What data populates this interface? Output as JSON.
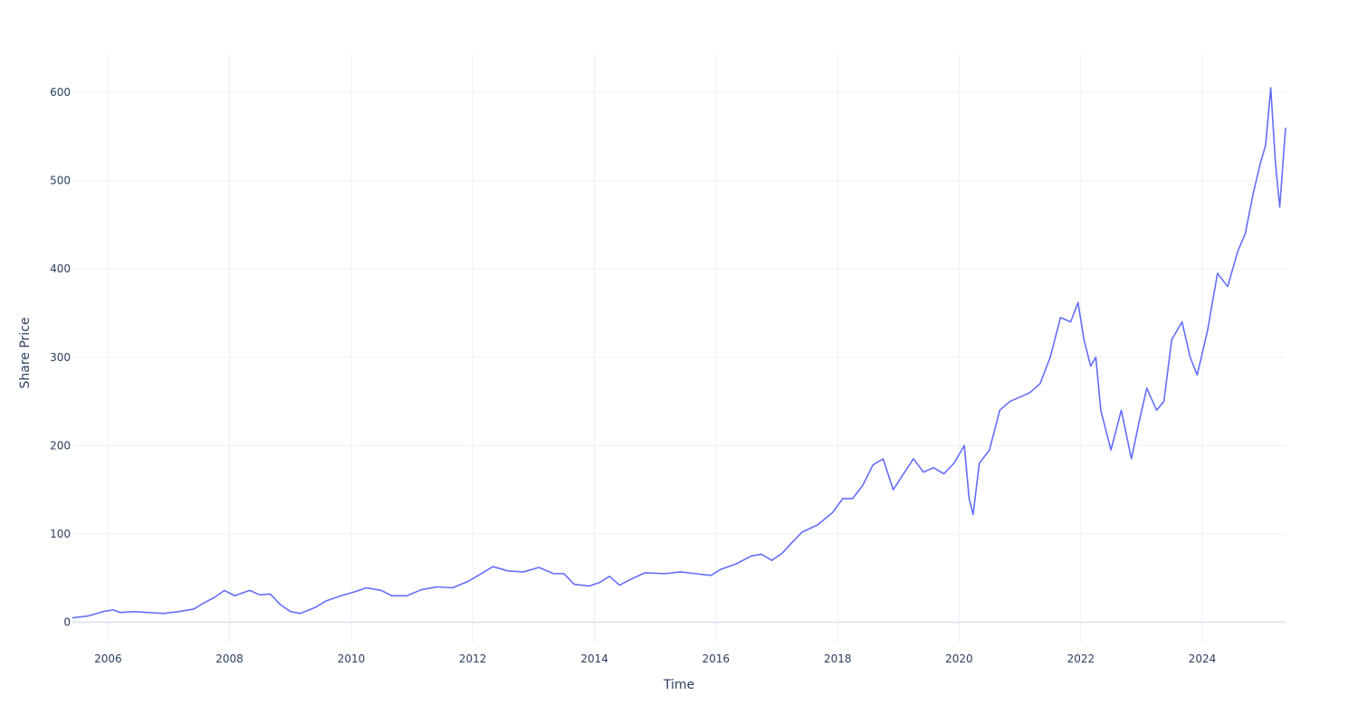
{
  "chart_data": {
    "type": "line",
    "title": "",
    "xlabel": "Time",
    "ylabel": "Share Price",
    "xlim": [
      "2005-06-01",
      "2025-05-15"
    ],
    "ylim": [
      -23,
      643
    ],
    "x_ticks": [
      "2006",
      "2008",
      "2010",
      "2012",
      "2014",
      "2016",
      "2018",
      "2020",
      "2022",
      "2024"
    ],
    "y_ticks": [
      0,
      100,
      200,
      300,
      400,
      500,
      600
    ],
    "grid": true,
    "legend": "none",
    "series": [
      {
        "color": "#636efa",
        "points": [
          [
            "2005-06-01",
            5
          ],
          [
            "2005-09-01",
            7
          ],
          [
            "2005-12-01",
            12
          ],
          [
            "2006-02-01",
            14
          ],
          [
            "2006-03-15",
            11
          ],
          [
            "2006-06-01",
            12
          ],
          [
            "2006-09-01",
            11
          ],
          [
            "2006-12-01",
            10
          ],
          [
            "2007-03-01",
            12
          ],
          [
            "2007-06-01",
            15
          ],
          [
            "2007-08-01",
            22
          ],
          [
            "2007-10-01",
            28
          ],
          [
            "2007-12-01",
            36
          ],
          [
            "2008-02-01",
            30
          ],
          [
            "2008-05-01",
            36
          ],
          [
            "2008-07-01",
            31
          ],
          [
            "2008-09-01",
            32
          ],
          [
            "2008-11-01",
            20
          ],
          [
            "2009-01-01",
            12
          ],
          [
            "2009-03-01",
            10
          ],
          [
            "2009-06-01",
            17
          ],
          [
            "2009-08-01",
            24
          ],
          [
            "2009-11-01",
            30
          ],
          [
            "2010-02-01",
            35
          ],
          [
            "2010-04-01",
            39
          ],
          [
            "2010-07-01",
            36
          ],
          [
            "2010-09-01",
            30
          ],
          [
            "2010-12-01",
            30
          ],
          [
            "2011-03-01",
            37
          ],
          [
            "2011-06-01",
            40
          ],
          [
            "2011-09-01",
            39
          ],
          [
            "2011-12-01",
            46
          ],
          [
            "2012-03-01",
            56
          ],
          [
            "2012-05-01",
            63
          ],
          [
            "2012-08-01",
            58
          ],
          [
            "2012-11-01",
            57
          ],
          [
            "2013-02-01",
            62
          ],
          [
            "2013-05-01",
            55
          ],
          [
            "2013-07-01",
            55
          ],
          [
            "2013-09-01",
            43
          ],
          [
            "2013-12-01",
            41
          ],
          [
            "2014-02-01",
            45
          ],
          [
            "2014-04-01",
            52
          ],
          [
            "2014-06-01",
            42
          ],
          [
            "2014-08-01",
            48
          ],
          [
            "2014-11-01",
            56
          ],
          [
            "2015-03-01",
            55
          ],
          [
            "2015-06-01",
            57
          ],
          [
            "2015-09-01",
            55
          ],
          [
            "2015-12-01",
            53
          ],
          [
            "2016-02-01",
            60
          ],
          [
            "2016-05-01",
            66
          ],
          [
            "2016-08-01",
            75
          ],
          [
            "2016-10-01",
            77
          ],
          [
            "2016-12-01",
            70
          ],
          [
            "2017-02-01",
            78
          ],
          [
            "2017-04-01",
            90
          ],
          [
            "2017-06-01",
            102
          ],
          [
            "2017-09-01",
            110
          ],
          [
            "2017-12-01",
            124
          ],
          [
            "2018-02-01",
            140
          ],
          [
            "2018-04-01",
            140
          ],
          [
            "2018-06-01",
            155
          ],
          [
            "2018-08-01",
            178
          ],
          [
            "2018-10-01",
            185
          ],
          [
            "2018-12-01",
            150
          ],
          [
            "2019-02-01",
            168
          ],
          [
            "2019-04-01",
            185
          ],
          [
            "2019-06-01",
            170
          ],
          [
            "2019-08-01",
            175
          ],
          [
            "2019-10-01",
            168
          ],
          [
            "2019-12-01",
            180
          ],
          [
            "2020-02-01",
            200
          ],
          [
            "2020-03-01",
            140
          ],
          [
            "2020-03-25",
            122
          ],
          [
            "2020-05-01",
            180
          ],
          [
            "2020-07-01",
            195
          ],
          [
            "2020-09-01",
            240
          ],
          [
            "2020-11-01",
            250
          ],
          [
            "2021-01-01",
            255
          ],
          [
            "2021-03-01",
            260
          ],
          [
            "2021-05-01",
            270
          ],
          [
            "2021-07-01",
            300
          ],
          [
            "2021-09-01",
            345
          ],
          [
            "2021-11-01",
            340
          ],
          [
            "2021-12-15",
            362
          ],
          [
            "2022-01-20",
            320
          ],
          [
            "2022-03-01",
            290
          ],
          [
            "2022-04-01",
            300
          ],
          [
            "2022-05-01",
            240
          ],
          [
            "2022-07-01",
            195
          ],
          [
            "2022-09-01",
            240
          ],
          [
            "2022-11-01",
            185
          ],
          [
            "2022-12-15",
            225
          ],
          [
            "2023-02-01",
            265
          ],
          [
            "2023-04-01",
            240
          ],
          [
            "2023-05-15",
            250
          ],
          [
            "2023-07-01",
            320
          ],
          [
            "2023-09-01",
            340
          ],
          [
            "2023-10-20",
            300
          ],
          [
            "2023-12-01",
            280
          ],
          [
            "2024-02-01",
            330
          ],
          [
            "2024-04-01",
            395
          ],
          [
            "2024-06-01",
            380
          ],
          [
            "2024-08-01",
            420
          ],
          [
            "2024-09-15",
            440
          ],
          [
            "2024-11-01",
            485
          ],
          [
            "2024-12-15",
            520
          ],
          [
            "2025-01-15",
            540
          ],
          [
            "2025-02-15",
            605
          ],
          [
            "2025-03-15",
            520
          ],
          [
            "2025-04-10",
            470
          ],
          [
            "2025-05-15",
            560
          ]
        ]
      }
    ]
  }
}
